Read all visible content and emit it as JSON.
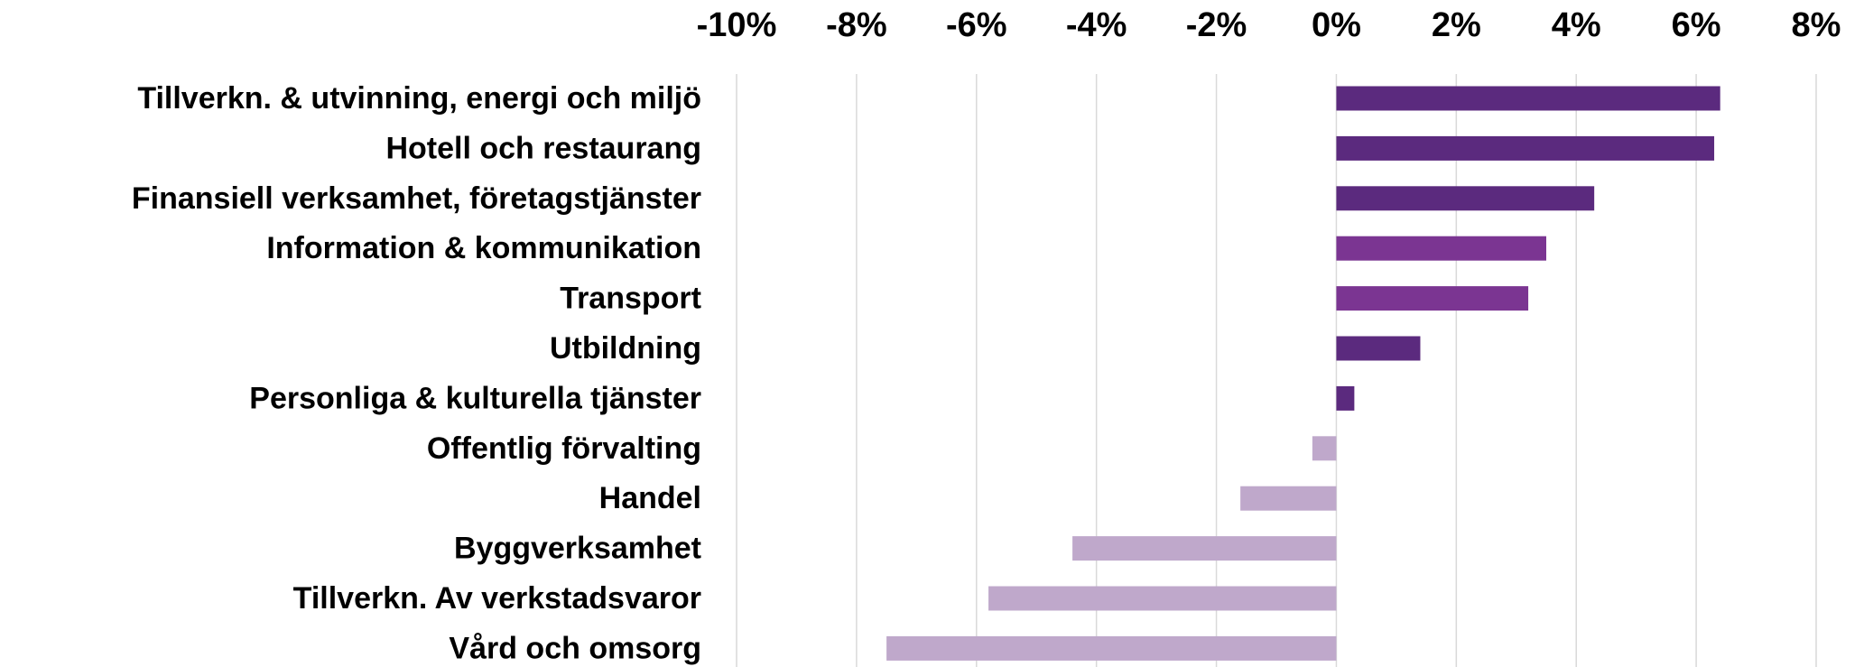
{
  "chart_data": {
    "type": "bar",
    "orientation": "horizontal",
    "categories": [
      "Tillverkn. & utvinning, energi och miljö",
      "Hotell och restaurang",
      "Finansiell verksamhet, företagstjänster",
      "Information & kommunikation",
      "Transport",
      "Utbildning",
      "Personliga & kulturella tjänster",
      "Offentlig förvalting",
      "Handel",
      "Byggverksamhet",
      "Tillverkn. Av verkstadsvaror",
      "Vård och omsorg"
    ],
    "values": [
      6.4,
      6.3,
      4.3,
      3.5,
      3.2,
      1.4,
      0.3,
      -0.4,
      -1.6,
      -4.4,
      -5.8,
      -7.5
    ],
    "colors": [
      "#5b2a7e",
      "#5b2a7e",
      "#5b2a7e",
      "#7b3592",
      "#7b3592",
      "#5b2a7e",
      "#5b2a7e",
      "#bfa8cb",
      "#bfa8cb",
      "#bfa8cb",
      "#bfa8cb",
      "#bfa8cb"
    ],
    "xlim": [
      -10,
      8
    ],
    "xticks": [
      {
        "value": -10,
        "label": "-10%"
      },
      {
        "value": -8,
        "label": "-8%"
      },
      {
        "value": -6,
        "label": "-6%"
      },
      {
        "value": -4,
        "label": "-4%"
      },
      {
        "value": -2,
        "label": "-2%"
      },
      {
        "value": 0,
        "label": "0%"
      },
      {
        "value": 2,
        "label": "2%"
      },
      {
        "value": 4,
        "label": "4%"
      },
      {
        "value": 6,
        "label": "6%"
      },
      {
        "value": 8,
        "label": "8%"
      }
    ],
    "grid": true
  }
}
